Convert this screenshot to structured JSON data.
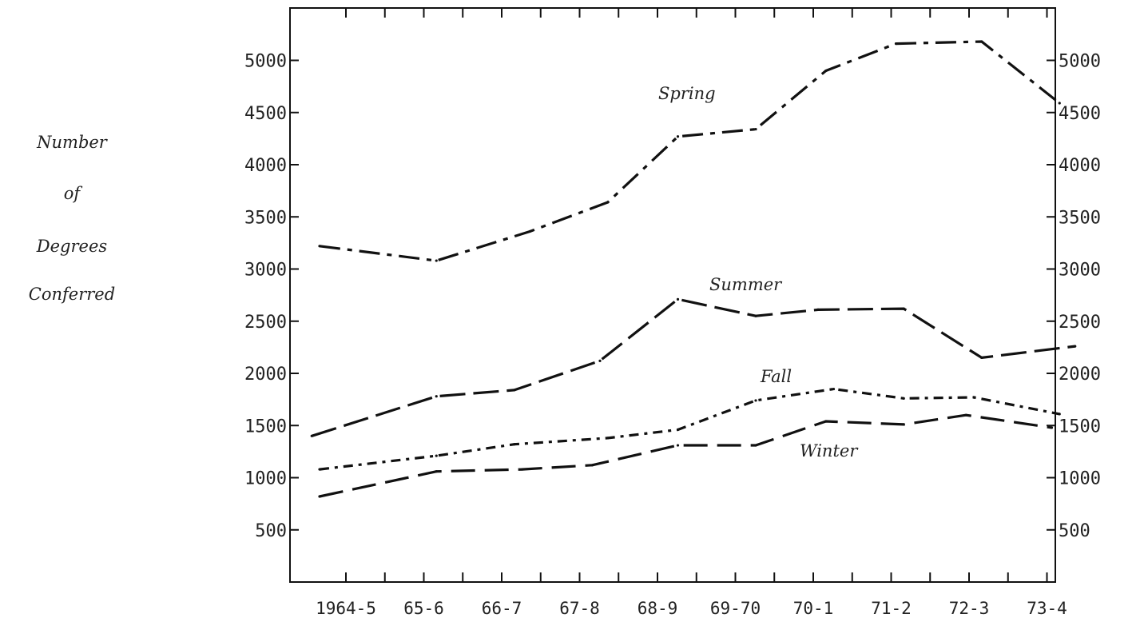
{
  "chart_data": {
    "type": "line",
    "title": "",
    "xlabel": "",
    "ylabel_lines": [
      "Number",
      "of",
      "Degrees",
      "Conferred"
    ],
    "categories": [
      "1964-5",
      "65-6",
      "66-7",
      "67-8",
      "68-9",
      "69-70",
      "70-1",
      "71-2",
      "72-3",
      "73-4"
    ],
    "ylim": [
      0,
      5500
    ],
    "yticks": [
      500,
      1000,
      1500,
      2000,
      2500,
      3000,
      3500,
      4000,
      4500,
      5000
    ],
    "ytick_labels": [
      "500",
      "1000",
      "1500",
      "2000",
      "2500",
      "3000",
      "3500",
      "4000",
      "4500",
      "5000"
    ],
    "grid": false,
    "legend": "none",
    "series": [
      {
        "name": "Spring",
        "x": [
          1964.5,
          1966,
          1967.2,
          1968.2,
          1969.1,
          1970.1,
          1971.0,
          1971.9,
          1973.0,
          1974.0
        ],
        "values": [
          3220,
          3080,
          3360,
          3640,
          4270,
          4340,
          4900,
          5160,
          5180,
          4590
        ]
      },
      {
        "name": "Summer",
        "x": [
          1964.4,
          1966.0,
          1967.0,
          1968.1,
          1969.1,
          1970.1,
          1970.9,
          1972.0,
          1973.0,
          1974.2
        ],
        "values": [
          1400,
          1780,
          1840,
          2120,
          2710,
          2550,
          2610,
          2620,
          2150,
          2260
        ]
      },
      {
        "name": "Fall",
        "x": [
          1964.5,
          1966.0,
          1967.0,
          1968.2,
          1969.1,
          1970.1,
          1971.1,
          1972.0,
          1972.9,
          1974.0
        ],
        "values": [
          1080,
          1210,
          1320,
          1380,
          1460,
          1740,
          1850,
          1760,
          1770,
          1610
        ]
      },
      {
        "name": "Winter",
        "x": [
          1964.5,
          1966.0,
          1967.1,
          1968.0,
          1969.1,
          1970.1,
          1971.0,
          1972.0,
          1972.8,
          1973.9
        ],
        "values": [
          820,
          1060,
          1080,
          1120,
          1310,
          1310,
          1540,
          1510,
          1600,
          1480
        ]
      }
    ]
  }
}
